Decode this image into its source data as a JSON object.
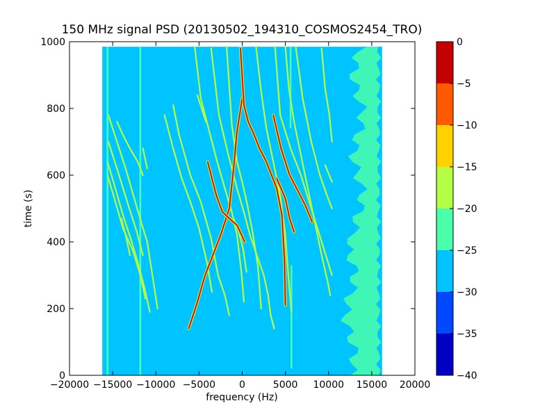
{
  "chart_data": {
    "type": "heatmap",
    "title": "150 MHz signal PSD (20130502_194310_COSMOS2454_TRO)",
    "xlabel": "frequency (Hz)",
    "ylabel": "time (s)",
    "xlim": [
      -20000,
      20000
    ],
    "ylim": [
      0,
      1000
    ],
    "x_ticks": [
      -20000,
      -15000,
      -10000,
      -5000,
      0,
      5000,
      10000,
      15000,
      20000
    ],
    "y_ticks": [
      0,
      200,
      400,
      600,
      800,
      1000
    ],
    "grid": false,
    "data_extent": {
      "freq_min": -16200,
      "freq_max": 16200,
      "time_min": 0,
      "time_max": 985
    },
    "background_level": -27.5,
    "colorbar": {
      "ticks": [
        0,
        -5,
        -10,
        -15,
        -20,
        -25,
        -30,
        -35,
        -40
      ],
      "levels": [
        {
          "min": -40,
          "max": -35,
          "color": "#0000c4"
        },
        {
          "min": -35,
          "max": -30,
          "color": "#0048ff"
        },
        {
          "min": -30,
          "max": -25,
          "color": "#00c4ff"
        },
        {
          "min": -25,
          "max": -20,
          "color": "#4affaa"
        },
        {
          "min": -20,
          "max": -15,
          "color": "#b4ff46"
        },
        {
          "min": -15,
          "max": -10,
          "color": "#ffd200"
        },
        {
          "min": -10,
          "max": -5,
          "color": "#ff5a00"
        },
        {
          "min": -5,
          "max": 0,
          "color": "#c40000"
        }
      ]
    },
    "vertical_lines": [
      {
        "freq": -15600,
        "t_start": 0,
        "t_end": 985,
        "level": -22.5
      },
      {
        "freq": -11800,
        "t_start": 0,
        "t_end": 985,
        "level": -22.5
      },
      {
        "freq": 5700,
        "t_start": 20,
        "t_end": 330,
        "level": -22.5
      },
      {
        "freq": 5600,
        "t_start": 740,
        "t_end": 985,
        "level": -22.5
      }
    ],
    "noise_band": {
      "freq_min": 12500,
      "freq_max": 15800,
      "t_start": 0,
      "t_end": 985,
      "level": -22.5
    },
    "series": [
      {
        "name": "",
        "level": -2.5,
        "points": [
          [
            0,
            830
          ],
          [
            -600,
            730
          ],
          [
            -1000,
            620
          ],
          [
            -1500,
            500
          ],
          [
            -2500,
            420
          ],
          [
            -3400,
            360
          ],
          [
            -4300,
            300
          ],
          [
            -5300,
            210
          ],
          [
            -6200,
            140
          ]
        ]
      },
      {
        "name": "",
        "level": -2.5,
        "points": [
          [
            -4000,
            640
          ],
          [
            -3000,
            540
          ],
          [
            -2300,
            490
          ],
          [
            -1500,
            470
          ],
          [
            -600,
            450
          ],
          [
            300,
            400
          ]
        ]
      },
      {
        "name": "",
        "level": -2.5,
        "points": [
          [
            -200,
            980
          ],
          [
            200,
            810
          ],
          [
            700,
            760
          ],
          [
            1400,
            720
          ],
          [
            2000,
            680
          ],
          [
            2800,
            640
          ],
          [
            3400,
            600
          ],
          [
            4000,
            560
          ],
          [
            4600,
            480
          ],
          [
            4900,
            340
          ],
          [
            5000,
            210
          ]
        ]
      },
      {
        "name": "",
        "level": -2.5,
        "points": [
          [
            3600,
            780
          ],
          [
            4500,
            680
          ],
          [
            5500,
            600
          ],
          [
            6500,
            550
          ],
          [
            7300,
            510
          ],
          [
            8100,
            460
          ]
        ]
      },
      {
        "name": "",
        "level": -2.5,
        "points": [
          [
            4000,
            590
          ],
          [
            5000,
            530
          ],
          [
            5500,
            470
          ],
          [
            6000,
            430
          ]
        ]
      },
      {
        "name": "",
        "level": -20,
        "points": [
          [
            -1800,
            985
          ],
          [
            -1200,
            750
          ],
          [
            -600,
            640
          ],
          [
            0,
            580
          ],
          [
            600,
            510
          ],
          [
            1200,
            430
          ],
          [
            1800,
            330
          ],
          [
            2200,
            200
          ]
        ]
      },
      {
        "name": "",
        "level": -20,
        "points": [
          [
            1600,
            985
          ],
          [
            2200,
            850
          ],
          [
            2800,
            740
          ],
          [
            3600,
            640
          ],
          [
            4400,
            540
          ],
          [
            5000,
            420
          ],
          [
            5400,
            280
          ],
          [
            5700,
            190
          ]
        ]
      },
      {
        "name": "",
        "level": -20,
        "points": [
          [
            5000,
            985
          ],
          [
            5400,
            860
          ],
          [
            6000,
            760
          ],
          [
            6800,
            660
          ],
          [
            7600,
            560
          ],
          [
            8400,
            460
          ],
          [
            9200,
            360
          ],
          [
            9900,
            280
          ],
          [
            10200,
            240
          ]
        ]
      },
      {
        "name": "",
        "level": -20,
        "points": [
          [
            3800,
            985
          ],
          [
            4400,
            780
          ],
          [
            5600,
            680
          ],
          [
            6800,
            600
          ],
          [
            8000,
            500
          ],
          [
            9200,
            400
          ],
          [
            10400,
            300
          ]
        ]
      },
      {
        "name": "",
        "level": -20,
        "points": [
          [
            6200,
            985
          ],
          [
            7000,
            830
          ],
          [
            8000,
            700
          ],
          [
            9000,
            600
          ],
          [
            9800,
            540
          ],
          [
            10400,
            500
          ]
        ]
      },
      {
        "name": "",
        "level": -20,
        "points": [
          [
            9200,
            980
          ],
          [
            9600,
            860
          ],
          [
            10100,
            780
          ],
          [
            10400,
            700
          ]
        ]
      },
      {
        "name": "",
        "level": -20,
        "points": [
          [
            9600,
            630
          ],
          [
            10400,
            580
          ]
        ]
      },
      {
        "name": "",
        "level": -20,
        "points": [
          [
            -5500,
            985
          ],
          [
            -4800,
            830
          ],
          [
            -3800,
            730
          ],
          [
            -2900,
            640
          ],
          [
            -2000,
            560
          ],
          [
            -1200,
            490
          ],
          [
            -600,
            420
          ],
          [
            -100,
            310
          ],
          [
            200,
            220
          ]
        ]
      },
      {
        "name": "",
        "level": -20,
        "points": [
          [
            -3600,
            980
          ],
          [
            -2700,
            780
          ],
          [
            -1600,
            660
          ],
          [
            -600,
            560
          ],
          [
            300,
            480
          ],
          [
            900,
            420
          ],
          [
            1700,
            360
          ],
          [
            2500,
            300
          ],
          [
            3000,
            240
          ],
          [
            3300,
            180
          ],
          [
            3700,
            140
          ]
        ]
      },
      {
        "name": "",
        "level": -20,
        "points": [
          [
            -8000,
            810
          ],
          [
            -7300,
            720
          ],
          [
            -6000,
            600
          ],
          [
            -4800,
            520
          ],
          [
            -3600,
            410
          ],
          [
            -2800,
            300
          ],
          [
            -2000,
            240
          ],
          [
            -1500,
            180
          ]
        ]
      },
      {
        "name": "",
        "level": -20,
        "points": [
          [
            -9000,
            780
          ],
          [
            -8000,
            680
          ],
          [
            -7000,
            590
          ],
          [
            -6000,
            520
          ],
          [
            -5000,
            440
          ],
          [
            -4100,
            340
          ],
          [
            -3500,
            250
          ]
        ]
      },
      {
        "name": "",
        "level": -20,
        "points": [
          [
            -15500,
            780
          ],
          [
            -14500,
            700
          ],
          [
            -13500,
            620
          ],
          [
            -12500,
            530
          ],
          [
            -11600,
            450
          ],
          [
            -11000,
            400
          ],
          [
            -10400,
            300
          ],
          [
            -9800,
            200
          ]
        ]
      },
      {
        "name": "",
        "level": -20,
        "points": [
          [
            -15600,
            640
          ],
          [
            -14800,
            570
          ],
          [
            -13800,
            480
          ],
          [
            -12800,
            400
          ],
          [
            -12000,
            330
          ],
          [
            -11300,
            260
          ],
          [
            -10700,
            190
          ]
        ]
      },
      {
        "name": "",
        "level": -20,
        "points": [
          [
            -15600,
            600
          ],
          [
            -14800,
            530
          ],
          [
            -13800,
            440
          ],
          [
            -12600,
            370
          ],
          [
            -11800,
            300
          ],
          [
            -11200,
            230
          ]
        ]
      },
      {
        "name": "",
        "level": -20,
        "points": [
          [
            -15500,
            700
          ],
          [
            -14500,
            620
          ],
          [
            -13200,
            510
          ],
          [
            -12200,
            430
          ],
          [
            -11500,
            360
          ]
        ]
      },
      {
        "name": "",
        "level": -20,
        "points": [
          [
            -14500,
            760
          ],
          [
            -13800,
            720
          ],
          [
            -13000,
            680
          ],
          [
            -12100,
            640
          ],
          [
            -11500,
            600
          ]
        ]
      },
      {
        "name": "",
        "level": -20,
        "points": [
          [
            -11500,
            680
          ],
          [
            -11000,
            620
          ]
        ]
      },
      {
        "name": "",
        "level": -20,
        "points": [
          [
            -14000,
            470
          ],
          [
            -13500,
            420
          ],
          [
            -13000,
            360
          ]
        ]
      },
      {
        "name": "",
        "level": -20,
        "points": [
          [
            -1000,
            470
          ],
          [
            -400,
            430
          ],
          [
            100,
            380
          ],
          [
            500,
            310
          ]
        ]
      },
      {
        "name": "",
        "level": -20,
        "points": [
          [
            -5200,
            840
          ],
          [
            -4700,
            800
          ],
          [
            -4200,
            760
          ]
        ]
      }
    ]
  }
}
